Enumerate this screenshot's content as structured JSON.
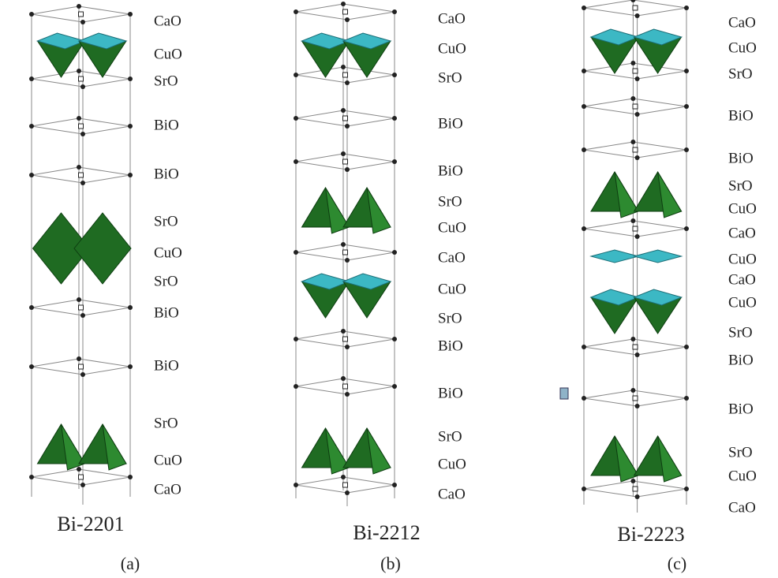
{
  "panels": [
    {
      "layers": [
        "CaO",
        "CuO",
        "SrO",
        "BiO",
        "BiO",
        "SrO",
        "CuO",
        "SrO",
        "BiO",
        "BiO",
        "SrO",
        "CuO",
        "CaO"
      ],
      "name": "Bi-2201",
      "caption": "(a)"
    },
    {
      "layers": [
        "CaO",
        "CuO",
        "SrO",
        "BiO",
        "BiO",
        "SrO",
        "CuO",
        "CaO",
        "CuO",
        "SrO",
        "BiO",
        "BiO",
        "SrO",
        "CuO",
        "CaO"
      ],
      "name": "Bi-2212",
      "caption": "(b)"
    },
    {
      "layers": [
        "CaO",
        "CuO",
        "SrO",
        "BiO",
        "BiO",
        "SrO",
        "CuO",
        "CaO",
        "CuO",
        "CaO",
        "CuO",
        "SrO",
        "BiO",
        "BiO",
        "SrO",
        "CuO",
        "CaO"
      ],
      "name": "Bi-2223",
      "caption": "(c)"
    }
  ]
}
